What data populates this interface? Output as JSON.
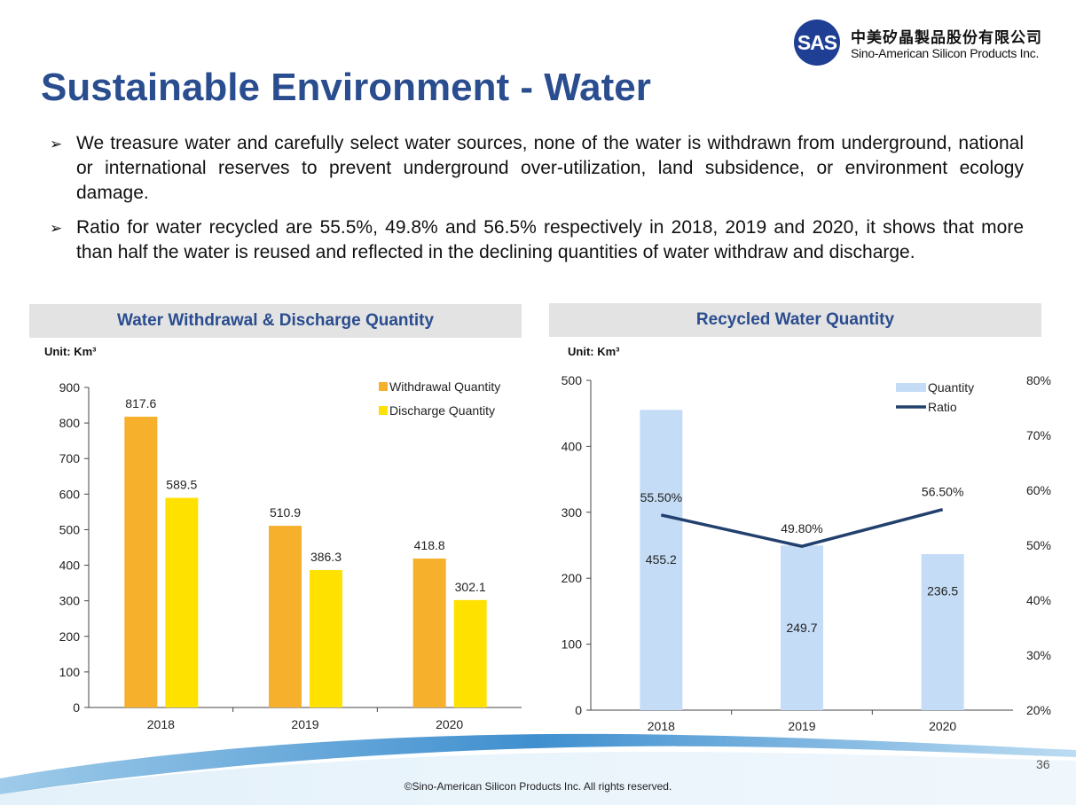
{
  "logo": {
    "mark": "SAS",
    "name_cn": "中美矽晶製品股份有限公司",
    "name_en": "Sino-American Silicon Products Inc.",
    "color": "#1f3f94"
  },
  "title": "Sustainable Environment - Water",
  "bullets": [
    "We treasure water and carefully select water sources, none of the water is withdrawn from underground, national or international reserves to prevent underground over-utilization, land subsidence, or environment ecology damage.",
    "Ratio for water recycled are 55.5%, 49.8% and 56.5% respectively in 2018, 2019 and 2020, it shows that more than half the water is reused and reflected in the declining quantities of water withdraw and discharge."
  ],
  "bullet_icon": "arrow-bullet-icon",
  "panels": {
    "left": {
      "header": "Water Withdrawal & Discharge Quantity",
      "unit": "Unit: Km³"
    },
    "right": {
      "header": "Recycled Water Quantity",
      "unit": "Unit: Km³"
    }
  },
  "chart_data": [
    {
      "type": "bar",
      "title": "Water Withdrawal & Discharge Quantity",
      "categories": [
        "2018",
        "2019",
        "2020"
      ],
      "series": [
        {
          "name": "Withdrawal Quantity",
          "values": [
            817.6,
            510.9,
            418.8
          ],
          "labels": [
            "817.6",
            "510.9",
            "418.8"
          ],
          "color": "#f6b02b"
        },
        {
          "name": "Discharge Quantity",
          "values": [
            589.5,
            386.3,
            302.1
          ],
          "labels": [
            "589.5",
            "386.3",
            "302.1"
          ],
          "color": "#ffe100"
        }
      ],
      "ylim": [
        0,
        900
      ],
      "yticks": [
        "0",
        "100",
        "200",
        "300",
        "400",
        "500",
        "600",
        "700",
        "800",
        "900"
      ],
      "legend": "top-right",
      "grid": false
    },
    {
      "type": "bar",
      "title": "Recycled Water Quantity",
      "categories": [
        "2018",
        "2019",
        "2020"
      ],
      "series": [
        {
          "name": "Quantity",
          "type": "bar",
          "axis": "left",
          "values": [
            455.2,
            249.7,
            236.5
          ],
          "labels": [
            "455.2",
            "249.7",
            "236.5"
          ],
          "color": "#c4dcf6"
        },
        {
          "name": "Ratio",
          "type": "line",
          "axis": "right",
          "values": [
            55.5,
            49.8,
            56.5
          ],
          "labels": [
            "55.50%",
            "49.80%",
            "56.50%"
          ],
          "color": "#22406e"
        }
      ],
      "ylim": [
        0,
        500
      ],
      "yticks": [
        "0",
        "100",
        "200",
        "300",
        "400",
        "500"
      ],
      "y2lim": [
        20,
        80
      ],
      "y2ticks": [
        "20%",
        "30%",
        "40%",
        "50%",
        "60%",
        "70%",
        "80%"
      ],
      "legend": "top-right",
      "grid": false
    }
  ],
  "footer": {
    "page": "36",
    "copyright": "©Sino-American Silicon Products Inc.  All rights reserved."
  }
}
